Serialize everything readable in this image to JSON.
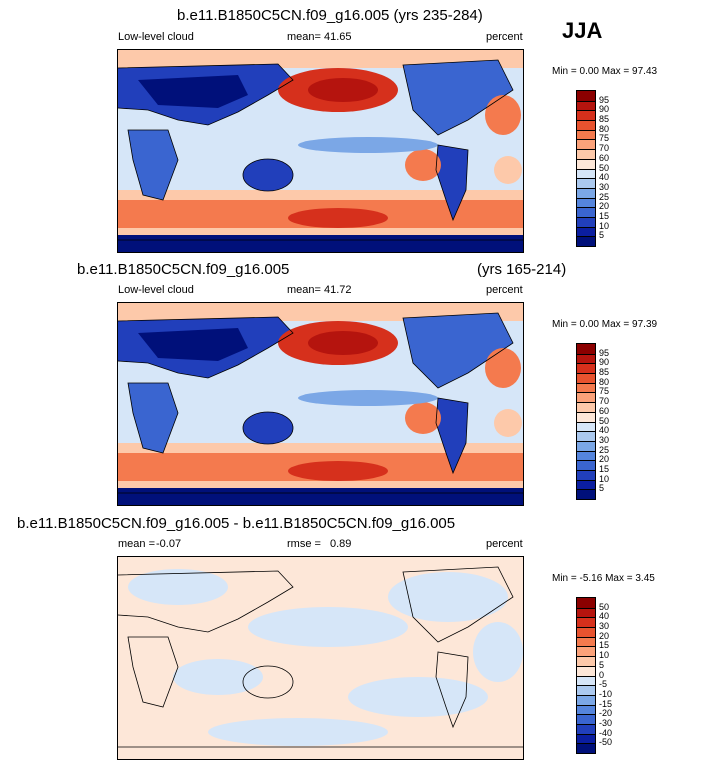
{
  "season": "JJA",
  "panels": [
    {
      "title": "b.e11.B1850C5CN.f09_g16.005 (yrs 235-284)",
      "left": "Low-level cloud",
      "center_label": "mean=",
      "center_value": "41.65",
      "right": "percent",
      "minmax": "Min =   0.00 Max = 97.43"
    },
    {
      "title": "b.e11.B1850C5CN.f09_g16.005",
      "title_right": "(yrs 165-214)",
      "left": "Low-level cloud",
      "center_label": "mean=",
      "center_value": "41.72",
      "right": "percent",
      "minmax": "Min =   0.00 Max = 97.39"
    },
    {
      "title": "b.e11.B1850C5CN.f09_g16.005 - b.e11.B1850C5CN.f09_g16.005",
      "left_label": "mean =",
      "left_value": "-0.07",
      "center_label": "rmse =",
      "center_value": "0.89",
      "right": "percent",
      "minmax": "Min =  -5.16 Max =   3.45"
    }
  ],
  "colorbar_levels": [
    "95",
    "90",
    "85",
    "80",
    "75",
    "70",
    "60",
    "50",
    "40",
    "30",
    "25",
    "20",
    "15",
    "10",
    "5"
  ],
  "colorbar_colors": [
    "#8b0000",
    "#b5140e",
    "#d6301c",
    "#e8532f",
    "#f47a4e",
    "#fba27a",
    "#fdc9aa",
    "#fde7d8",
    "#d6e6f8",
    "#abc9ef",
    "#7ba7e6",
    "#5585dd",
    "#3a65d0",
    "#213fbb",
    "#0b1ea0",
    "#00107a"
  ],
  "diff_colorbar_levels": [
    "50",
    "40",
    "30",
    "20",
    "15",
    "10",
    "5",
    "0",
    "-5",
    "-10",
    "-15",
    "-20",
    "-30",
    "-40",
    "-50"
  ],
  "diff_colorbar_colors": [
    "#8b0000",
    "#b5140e",
    "#d6301c",
    "#e8532f",
    "#f47a4e",
    "#fba27a",
    "#fdc9aa",
    "#fde7d8",
    "#d6e6f8",
    "#abc9ef",
    "#7ba7e6",
    "#5585dd",
    "#3a65d0",
    "#213fbb",
    "#0b1ea0",
    "#00107a"
  ],
  "map_colors": {
    "c1": "#00107a",
    "c2": "#213fbb",
    "c3": "#3a65d0",
    "c4": "#7ba7e6",
    "c5": "#abc9ef",
    "c6": "#d6e6f8",
    "c7": "#fde7d8",
    "c8": "#fdc9aa",
    "c9": "#f47a4e",
    "c10": "#d6301c",
    "c11": "#b5140e"
  }
}
